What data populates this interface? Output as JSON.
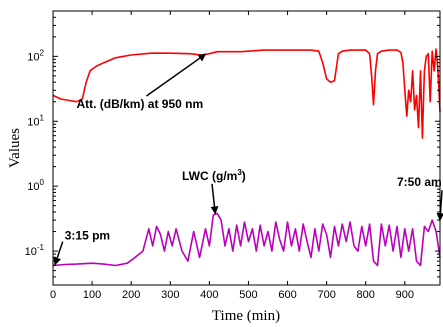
{
  "chart_data": {
    "type": "line",
    "xlabel": "Time (min)",
    "ylabel": "Values",
    "xlim": [
      0,
      990
    ],
    "ylim": [
      0.03,
      500
    ],
    "yscale": "log",
    "grid": false,
    "x_ticks": [
      0,
      100,
      200,
      300,
      400,
      500,
      600,
      700,
      800,
      900
    ],
    "y_ticks": [
      {
        "value": 0.1,
        "base": "10",
        "exp": "-1"
      },
      {
        "value": 1,
        "base": "10",
        "exp": "0"
      },
      {
        "value": 10,
        "base": "10",
        "exp": "1"
      },
      {
        "value": 100,
        "base": "10",
        "exp": "2"
      }
    ],
    "series": [
      {
        "name": "Att. (dB/km) at 950 nm",
        "color": "#ff0000",
        "x": [
          0,
          20,
          40,
          60,
          75,
          85,
          95,
          110,
          130,
          160,
          200,
          250,
          300,
          350,
          380,
          400,
          420,
          450,
          480,
          500,
          540,
          580,
          620,
          660,
          680,
          690,
          700,
          710,
          720,
          730,
          740,
          760,
          780,
          800,
          810,
          815,
          820,
          825,
          830,
          840,
          860,
          880,
          890,
          895,
          900,
          905,
          910,
          915,
          920,
          925,
          930,
          935,
          940,
          945,
          950,
          955,
          960,
          965,
          970,
          975,
          980,
          985,
          990
        ],
        "values": [
          25,
          22,
          21,
          20,
          22,
          40,
          60,
          70,
          80,
          95,
          105,
          112,
          112,
          110,
          105,
          110,
          118,
          118,
          118,
          120,
          125,
          125,
          125,
          125,
          120,
          80,
          45,
          40,
          42,
          110,
          120,
          125,
          125,
          125,
          110,
          50,
          18,
          60,
          110,
          120,
          125,
          125,
          115,
          80,
          30,
          12,
          30,
          20,
          60,
          15,
          25,
          8,
          60,
          5.5,
          60,
          100,
          110,
          20,
          120,
          60,
          130,
          60,
          14
        ]
      },
      {
        "name": "LWC (g/m3)",
        "color": "#bb00bb",
        "x": [
          0,
          30,
          60,
          100,
          130,
          160,
          190,
          210,
          230,
          245,
          255,
          265,
          275,
          285,
          295,
          305,
          315,
          330,
          345,
          360,
          375,
          390,
          400,
          410,
          420,
          430,
          440,
          450,
          460,
          470,
          480,
          490,
          500,
          510,
          520,
          530,
          540,
          550,
          560,
          570,
          580,
          590,
          600,
          610,
          620,
          630,
          640,
          650,
          660,
          670,
          680,
          690,
          700,
          710,
          720,
          730,
          740,
          750,
          760,
          770,
          780,
          790,
          800,
          810,
          820,
          830,
          840,
          850,
          860,
          870,
          880,
          890,
          900,
          910,
          920,
          930,
          940,
          950,
          960,
          970,
          980,
          990
        ],
        "values": [
          0.06,
          0.062,
          0.063,
          0.065,
          0.063,
          0.06,
          0.065,
          0.08,
          0.1,
          0.22,
          0.12,
          0.24,
          0.18,
          0.1,
          0.2,
          0.12,
          0.22,
          0.1,
          0.07,
          0.2,
          0.08,
          0.22,
          0.12,
          0.36,
          0.38,
          0.3,
          0.12,
          0.22,
          0.1,
          0.25,
          0.12,
          0.28,
          0.14,
          0.22,
          0.1,
          0.25,
          0.12,
          0.2,
          0.1,
          0.28,
          0.15,
          0.1,
          0.28,
          0.12,
          0.22,
          0.1,
          0.26,
          0.14,
          0.08,
          0.22,
          0.1,
          0.26,
          0.18,
          0.08,
          0.24,
          0.12,
          0.26,
          0.14,
          0.28,
          0.12,
          0.1,
          0.24,
          0.12,
          0.26,
          0.07,
          0.06,
          0.26,
          0.12,
          0.25,
          0.1,
          0.24,
          0.08,
          0.22,
          0.1,
          0.22,
          0.07,
          0.06,
          0.24,
          0.2,
          0.3,
          0.2,
          0.08
        ]
      }
    ],
    "annotations": [
      {
        "id": "att",
        "text": "Att. (dB/km) at 950 nm",
        "point": [
          390,
          108
        ],
        "text_pos": [
          60,
          16
        ]
      },
      {
        "id": "lwc",
        "text_main": "LWC (g/m",
        "text_sup": "3",
        "text_end": ")",
        "point": [
          415,
          0.38
        ],
        "text_pos": [
          330,
          1.25
        ]
      },
      {
        "id": "start",
        "text": "3:15 pm",
        "point": [
          5,
          0.062
        ],
        "text_pos": [
          30,
          0.15
        ]
      },
      {
        "id": "end",
        "text": "7:50 am",
        "point": [
          990,
          0.3
        ],
        "text_pos": [
          880,
          1.0
        ]
      }
    ]
  }
}
